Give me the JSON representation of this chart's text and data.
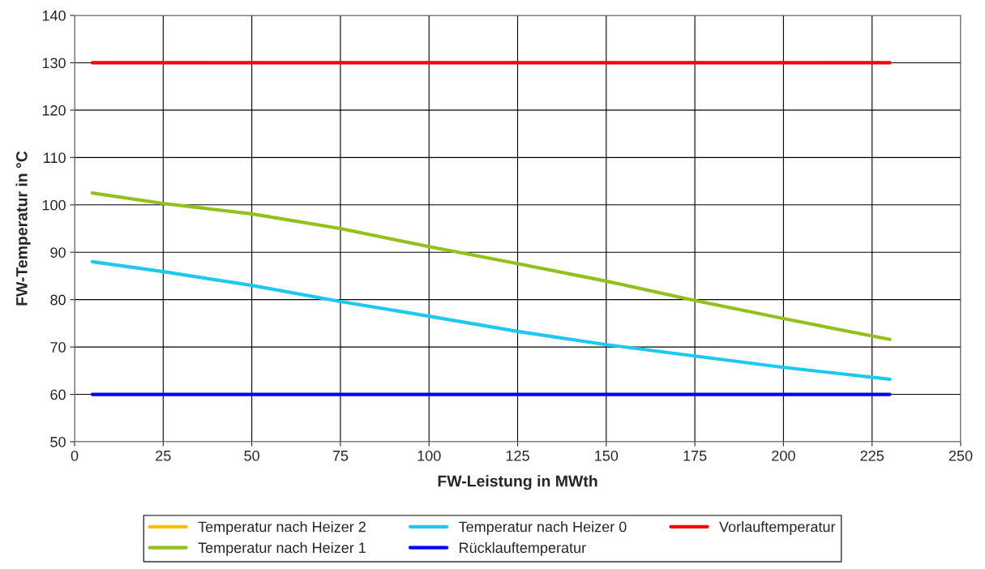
{
  "chart_data": {
    "type": "line",
    "xlabel": "FW-Leistung in MWth",
    "ylabel": "FW-Temperatur in °C",
    "x": [
      5,
      25,
      50,
      75,
      100,
      125,
      150,
      175,
      200,
      230
    ],
    "series": [
      {
        "name": "Temperatur nach Heizer 2",
        "color": "#ffc000",
        "values": [
          null,
          null,
          null,
          null,
          null,
          null,
          null,
          null,
          null,
          null
        ]
      },
      {
        "name": "Temperatur nach Heizer 1",
        "color": "#92c01c",
        "values": [
          102.5,
          100.3,
          98.1,
          95,
          91.2,
          87.6,
          83.9,
          79.8,
          76,
          71.6
        ]
      },
      {
        "name": "Temperatur nach Heizer 0",
        "color": "#1ec8f0",
        "values": [
          88,
          85.9,
          83,
          79.6,
          76.5,
          73.3,
          70.5,
          68.1,
          65.7,
          63.2
        ]
      },
      {
        "name": "Rücklauftemperatur",
        "color": "#0000ff",
        "values": [
          60,
          60,
          60,
          60,
          60,
          60,
          60,
          60,
          60,
          60
        ]
      },
      {
        "name": "Vorlauftemperatur",
        "color": "#ff0000",
        "values": [
          130,
          130,
          130,
          130,
          130,
          130,
          130,
          130,
          130,
          130
        ]
      }
    ],
    "xlim": [
      0,
      250
    ],
    "xticks": [
      0,
      25,
      50,
      75,
      100,
      125,
      150,
      175,
      200,
      225,
      250
    ],
    "ylim": [
      50,
      140
    ],
    "yticks": [
      50,
      60,
      70,
      80,
      90,
      100,
      110,
      120,
      130,
      140
    ],
    "grid": true,
    "legend": "bottom",
    "marker": "none",
    "line_style": "solid"
  }
}
